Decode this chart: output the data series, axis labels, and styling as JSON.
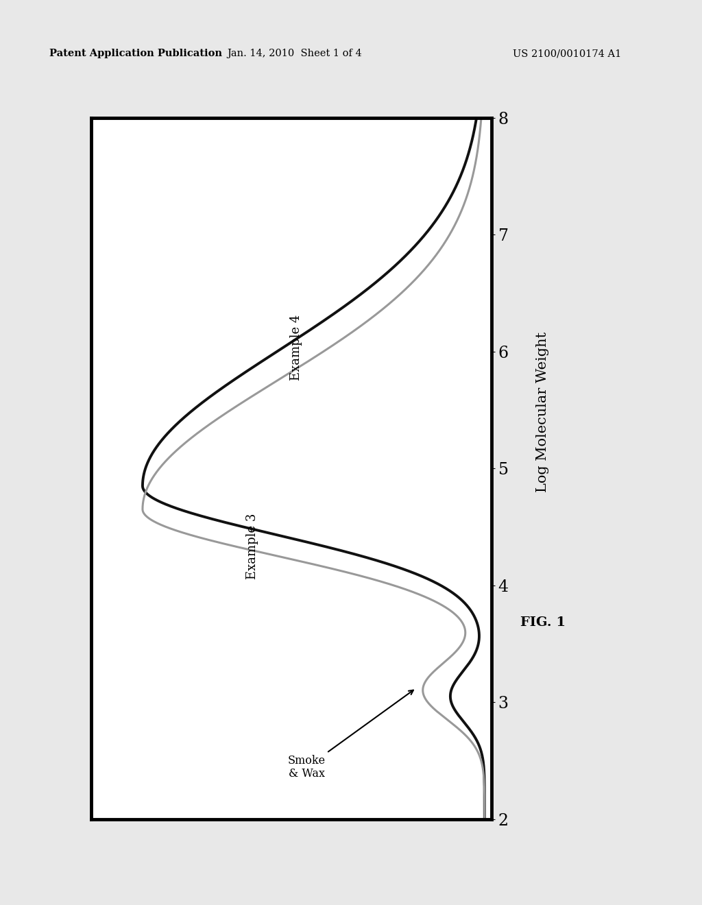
{
  "header_left": "Patent Application Publication",
  "header_center": "Jan. 14, 2010  Sheet 1 of 4",
  "header_right": "US 2100/0010174 A1",
  "x_label": "Log Molecular Weight",
  "fig_label": "FIG. 1",
  "x_ticks": [
    2,
    3,
    4,
    5,
    6,
    7,
    8
  ],
  "curve_example3": {
    "color": "#999999",
    "lw": 2.2
  },
  "curve_example4": {
    "color": "#111111",
    "lw": 2.8
  },
  "background_color": "#ffffff",
  "border_color": "#000000",
  "page_color": "#e8e8e8"
}
